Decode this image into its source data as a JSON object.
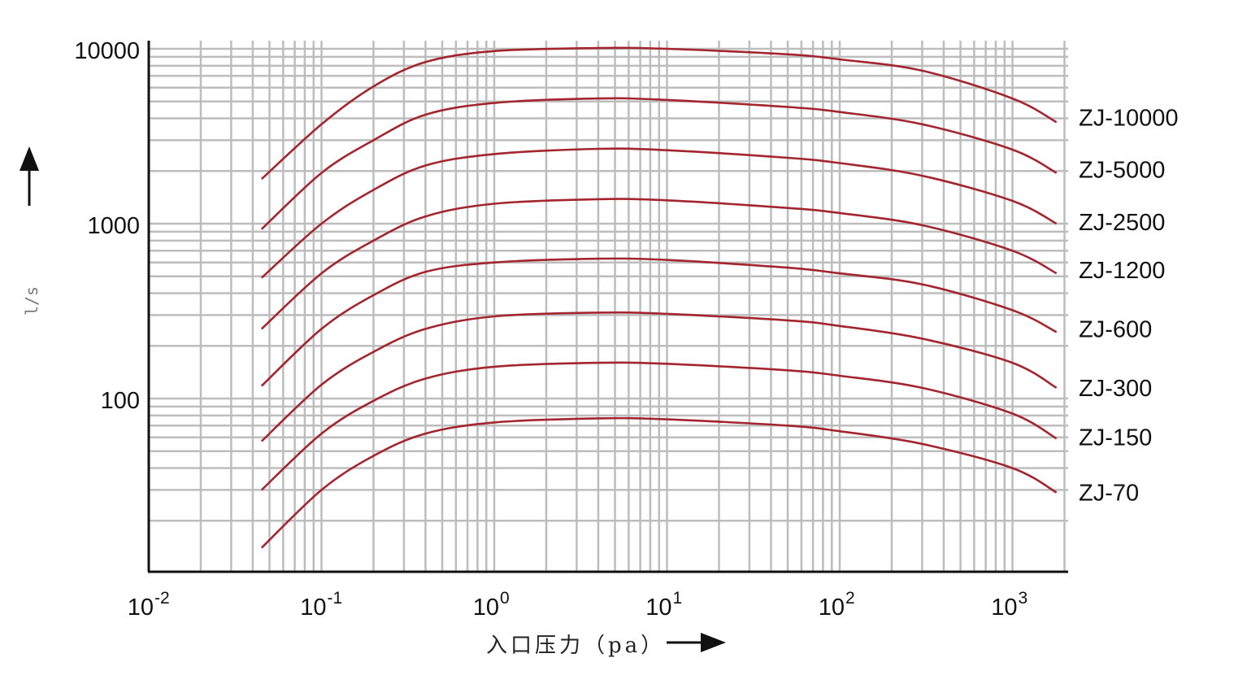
{
  "chart_data": {
    "type": "line",
    "xscale": "log",
    "yscale": "log",
    "xlim": [
      0.01,
      2000
    ],
    "ylim": [
      11,
      11000
    ],
    "xlabel": "入口压力（pa）",
    "ylabel": "l/s",
    "x_ticks": [
      {
        "value": 0.01,
        "base": "10",
        "exp": "-2"
      },
      {
        "value": 0.1,
        "base": "10",
        "exp": "-1"
      },
      {
        "value": 1,
        "base": "10",
        "exp": "0"
      },
      {
        "value": 10,
        "base": "10",
        "exp": "1"
      },
      {
        "value": 100,
        "base": "10",
        "exp": "2"
      },
      {
        "value": 1000,
        "base": "10",
        "exp": "3"
      }
    ],
    "y_ticks": [
      {
        "value": 10000,
        "label": "10000"
      },
      {
        "value": 1000,
        "label": "1000"
      },
      {
        "value": 100,
        "label": "100"
      }
    ],
    "grid": true,
    "legend": "right end labels",
    "line_color": "#a3262f",
    "series": [
      {
        "name": "ZJ-10000",
        "x": [
          0.045,
          0.1,
          0.2,
          0.4,
          1,
          4,
          10,
          50,
          100,
          300,
          1000,
          1800
        ],
        "y": [
          1800,
          3700,
          6100,
          8400,
          9700,
          10100,
          10000,
          9300,
          8700,
          7500,
          5200,
          3800
        ]
      },
      {
        "name": "ZJ-5000",
        "x": [
          0.045,
          0.1,
          0.2,
          0.4,
          1,
          4,
          10,
          50,
          100,
          300,
          1000,
          1800
        ],
        "y": [
          930,
          1950,
          3000,
          4200,
          4900,
          5200,
          5100,
          4650,
          4350,
          3700,
          2650,
          1950
        ]
      },
      {
        "name": "ZJ-2500",
        "x": [
          0.045,
          0.1,
          0.2,
          0.4,
          1,
          4,
          10,
          50,
          100,
          300,
          1000,
          1800
        ],
        "y": [
          490,
          1000,
          1560,
          2150,
          2500,
          2680,
          2630,
          2380,
          2220,
          1880,
          1350,
          1000
        ]
      },
      {
        "name": "ZJ-1200",
        "x": [
          0.045,
          0.1,
          0.2,
          0.4,
          1,
          4,
          10,
          50,
          100,
          300,
          1000,
          1800
        ],
        "y": [
          250,
          520,
          800,
          1100,
          1300,
          1380,
          1360,
          1230,
          1150,
          980,
          700,
          520
        ]
      },
      {
        "name": "ZJ-600",
        "x": [
          0.045,
          0.1,
          0.2,
          0.4,
          1,
          4,
          10,
          50,
          100,
          300,
          1000,
          1800
        ],
        "y": [
          118,
          250,
          390,
          530,
          600,
          630,
          620,
          560,
          520,
          450,
          320,
          240
        ]
      },
      {
        "name": "ZJ-300",
        "x": [
          0.045,
          0.1,
          0.2,
          0.4,
          1,
          4,
          10,
          50,
          100,
          300,
          1000,
          1800
        ],
        "y": [
          57,
          120,
          185,
          250,
          295,
          310,
          305,
          280,
          260,
          220,
          160,
          115
        ]
      },
      {
        "name": "ZJ-150",
        "x": [
          0.045,
          0.1,
          0.2,
          0.4,
          1,
          4,
          10,
          50,
          100,
          300,
          1000,
          1800
        ],
        "y": [
          30,
          63,
          97,
          130,
          152,
          160,
          158,
          145,
          135,
          115,
          82,
          59
        ]
      },
      {
        "name": "ZJ-70",
        "x": [
          0.045,
          0.1,
          0.2,
          0.4,
          1,
          4,
          10,
          50,
          100,
          300,
          1000,
          1800
        ],
        "y": [
          14,
          30,
          47,
          63,
          73,
          77,
          76,
          70,
          65,
          55,
          40,
          29
        ]
      }
    ]
  }
}
